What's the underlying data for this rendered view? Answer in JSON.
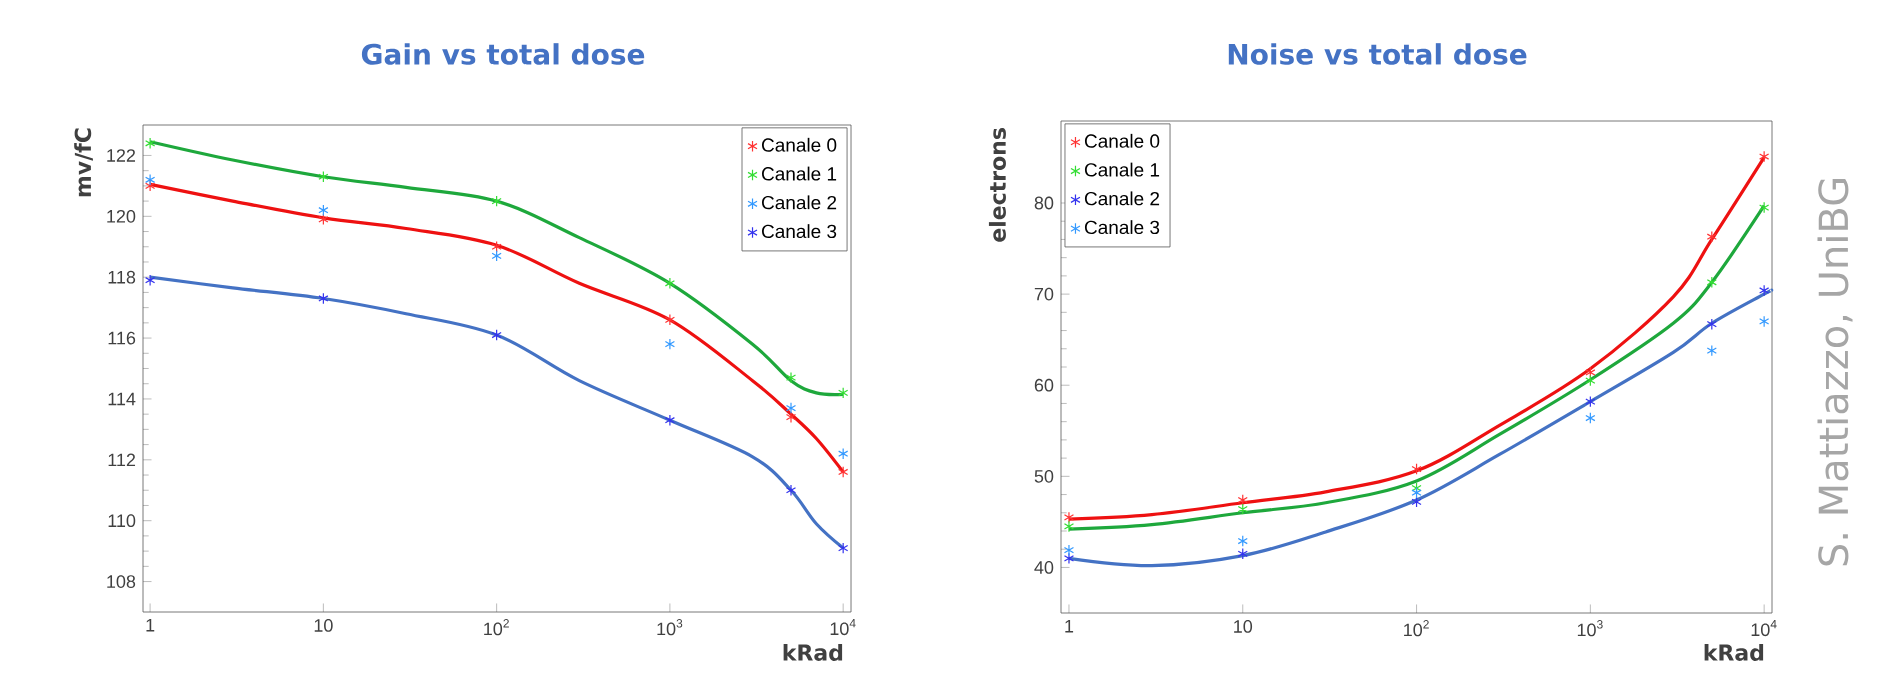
{
  "chart_data": [
    {
      "type": "scatter",
      "title": "Gain vs total dose",
      "xlabel": "kRad",
      "ylabel": "mv/fC",
      "log": "x",
      "legend": "top right",
      "marker": "cross",
      "x": [
        1,
        10,
        100,
        1000,
        5000,
        10000
      ],
      "xlim": [
        0.91,
        11100
      ],
      "ylim": [
        107,
        123
      ],
      "xticks": [
        1,
        10,
        {
          "value": 100,
          "label": "10$^{2}$"
        },
        {
          "value": 1000,
          "label": "10$^{3}$"
        },
        {
          "value": 10000,
          "label": "10$^{4}$"
        }
      ],
      "yticks": [
        108,
        110,
        112,
        114,
        116,
        118,
        120,
        122
      ],
      "series": [
        {
          "name": "Canale 0",
          "color": "#ff3333",
          "values": [
            121.0,
            119.9,
            119.0,
            116.6,
            113.4,
            111.6
          ]
        },
        {
          "name": "Canale 1",
          "color": "#33dd33",
          "values": [
            122.4,
            121.3,
            120.5,
            117.8,
            114.7,
            114.2
          ]
        },
        {
          "name": "Canale 2",
          "color": "#3399ff",
          "values": [
            121.2,
            120.2,
            118.7,
            115.8,
            113.7,
            112.2
          ]
        },
        {
          "name": "Canale 3",
          "color": "#3333ee",
          "values": [
            117.9,
            117.3,
            116.1,
            113.3,
            111.0,
            109.1
          ]
        },
        {
          "type": "line",
          "marker": "none",
          "line_style": "solid",
          "color": "#ee1111",
          "x": [
            1,
            3,
            10,
            30,
            100,
            300,
            1000,
            3000,
            5000,
            7000,
            10000
          ],
          "values": [
            121.05,
            120.5,
            119.95,
            119.6,
            119.05,
            117.8,
            116.6,
            114.6,
            113.5,
            112.7,
            111.6
          ]
        },
        {
          "type": "line",
          "marker": "none",
          "line_style": "solid",
          "color": "#1ea83c",
          "x": [
            1,
            3,
            10,
            30,
            100,
            300,
            1000,
            3000,
            5000,
            7000,
            10000
          ],
          "values": [
            122.45,
            121.85,
            121.3,
            120.95,
            120.5,
            119.3,
            117.8,
            115.8,
            114.6,
            114.2,
            114.15
          ]
        },
        {
          "type": "line",
          "marker": "none",
          "line_style": "solid",
          "color": "#4472c4",
          "x": [
            1,
            3,
            10,
            30,
            100,
            300,
            1000,
            3000,
            5000,
            7000,
            10000
          ],
          "values": [
            118.0,
            117.65,
            117.3,
            116.8,
            116.1,
            114.6,
            113.3,
            112.1,
            111.0,
            109.9,
            109.1
          ]
        }
      ]
    },
    {
      "type": "scatter",
      "title": "Noise vs total dose",
      "xlabel": "kRad",
      "ylabel": "electrons",
      "log": "x",
      "legend": "top left",
      "marker": "cross",
      "annotations": [
        "S. Mattiazzo, UniBG"
      ],
      "x": [
        1,
        10,
        100,
        1000,
        5000,
        10000
      ],
      "xlim": [
        0.9,
        11100
      ],
      "ylim": [
        35,
        89
      ],
      "xticks": [
        1,
        10,
        {
          "value": 100,
          "label": "10$^{2}$"
        },
        {
          "value": 1000,
          "label": "10$^{3}$"
        },
        {
          "value": 10000,
          "label": "10$^{4}$"
        }
      ],
      "yticks": [
        40,
        50,
        60,
        70,
        80
      ],
      "series": [
        {
          "name": "Canale 0",
          "color": "#ff3333",
          "values": [
            45.5,
            47.4,
            50.8,
            61.4,
            76.3,
            85.1
          ]
        },
        {
          "name": "Canale 1",
          "color": "#33dd33",
          "values": [
            44.5,
            46.4,
            48.7,
            60.5,
            71.3,
            79.5
          ]
        },
        {
          "name": "Canale 2",
          "color": "#3333ee",
          "values": [
            41.0,
            41.5,
            47.2,
            58.2,
            66.7,
            70.4
          ]
        },
        {
          "name": "Canale 3",
          "color": "#3399ff",
          "values": [
            41.9,
            42.9,
            48.2,
            56.4,
            63.8,
            67.0
          ]
        },
        {
          "type": "line",
          "marker": "none",
          "line_style": "solid",
          "color": "#ee1111",
          "x": [
            1,
            3,
            10,
            30,
            100,
            300,
            1000,
            3000,
            5000,
            10000
          ],
          "values": [
            45.3,
            45.8,
            47.1,
            48.3,
            50.6,
            55.6,
            61.8,
            69.7,
            76.0,
            85.0
          ]
        },
        {
          "type": "line",
          "marker": "none",
          "line_style": "solid",
          "color": "#1ea83c",
          "x": [
            1,
            3,
            10,
            30,
            100,
            300,
            1000,
            3000,
            5000,
            10000
          ],
          "values": [
            44.2,
            44.7,
            46.0,
            47.1,
            49.5,
            54.6,
            60.6,
            66.8,
            71.3,
            79.7
          ]
        },
        {
          "type": "line",
          "marker": "none",
          "line_style": "solid",
          "color": "#4472c4",
          "x": [
            1,
            3,
            10,
            30,
            100,
            300,
            1000,
            3000,
            5000,
            10000,
            11000
          ],
          "values": [
            41.0,
            40.2,
            41.3,
            43.9,
            47.4,
            52.4,
            58.2,
            63.6,
            66.8,
            70.0,
            70.4
          ]
        }
      ]
    }
  ]
}
